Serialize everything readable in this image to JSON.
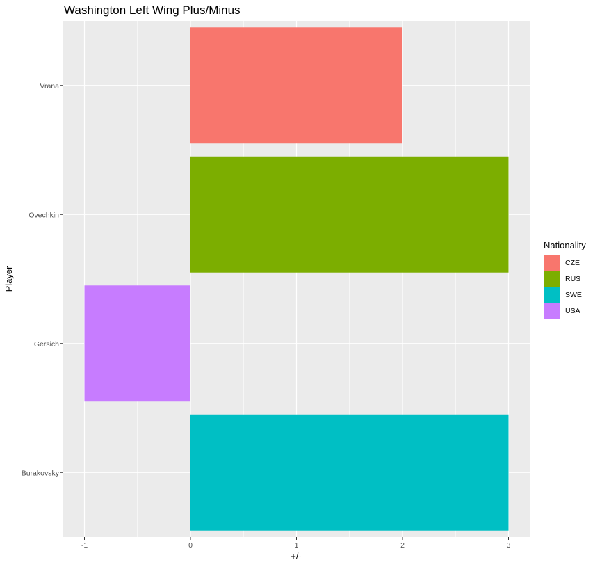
{
  "chart_data": {
    "type": "bar",
    "orientation": "horizontal",
    "title": "Washington Left Wing Plus/Minus",
    "xlabel": "+/-",
    "ylabel": "Player",
    "categories": [
      "Vrana",
      "Ovechkin",
      "Gersich",
      "Burakovsky"
    ],
    "values": [
      2,
      3,
      -1,
      3
    ],
    "bar_groups": [
      "CZE",
      "RUS",
      "USA",
      "SWE"
    ],
    "xlim": [
      -1.2,
      3.2
    ],
    "x_ticks": [
      -1,
      0,
      1,
      2,
      3
    ],
    "x_tick_labels": [
      "-1",
      "0",
      "1",
      "2",
      "3"
    ],
    "grid": true,
    "legend": {
      "title": "Nationality",
      "position": "right",
      "entries": [
        {
          "label": "CZE",
          "color": "#F8766D"
        },
        {
          "label": "RUS",
          "color": "#7CAE00"
        },
        {
          "label": "SWE",
          "color": "#00BFC4"
        },
        {
          "label": "USA",
          "color": "#C77CFF"
        }
      ]
    }
  },
  "colors": {
    "panel_background": "#EBEBEB",
    "grid_line": "#FFFFFF",
    "tick_color": "#333333"
  }
}
